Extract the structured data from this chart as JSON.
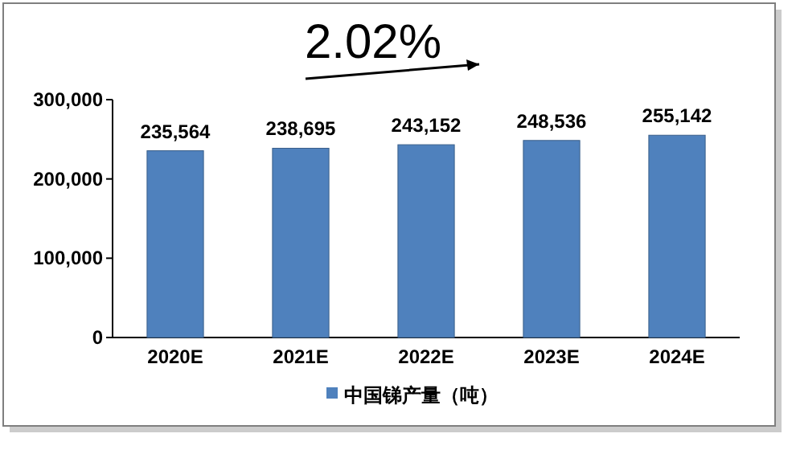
{
  "chart_data": {
    "type": "bar",
    "categories": [
      "2020E",
      "2021E",
      "2022E",
      "2023E",
      "2024E"
    ],
    "series": [
      {
        "name": "中国锑产量（吨）",
        "color": "#4f81bd",
        "values": [
          235564,
          238695,
          243152,
          248536,
          255142
        ]
      }
    ],
    "value_labels": [
      "235,564",
      "238,695",
      "243,152",
      "248,536",
      "255,142"
    ],
    "ylim": [
      0,
      300000
    ],
    "yticks": [
      {
        "value": 0,
        "label": "0"
      },
      {
        "value": 100000,
        "label": "100,000"
      },
      {
        "value": 200000,
        "label": "200,000"
      },
      {
        "value": 300000,
        "label": "300,000"
      }
    ],
    "annotations": [
      "2.02%"
    ],
    "legend": "bottom"
  }
}
